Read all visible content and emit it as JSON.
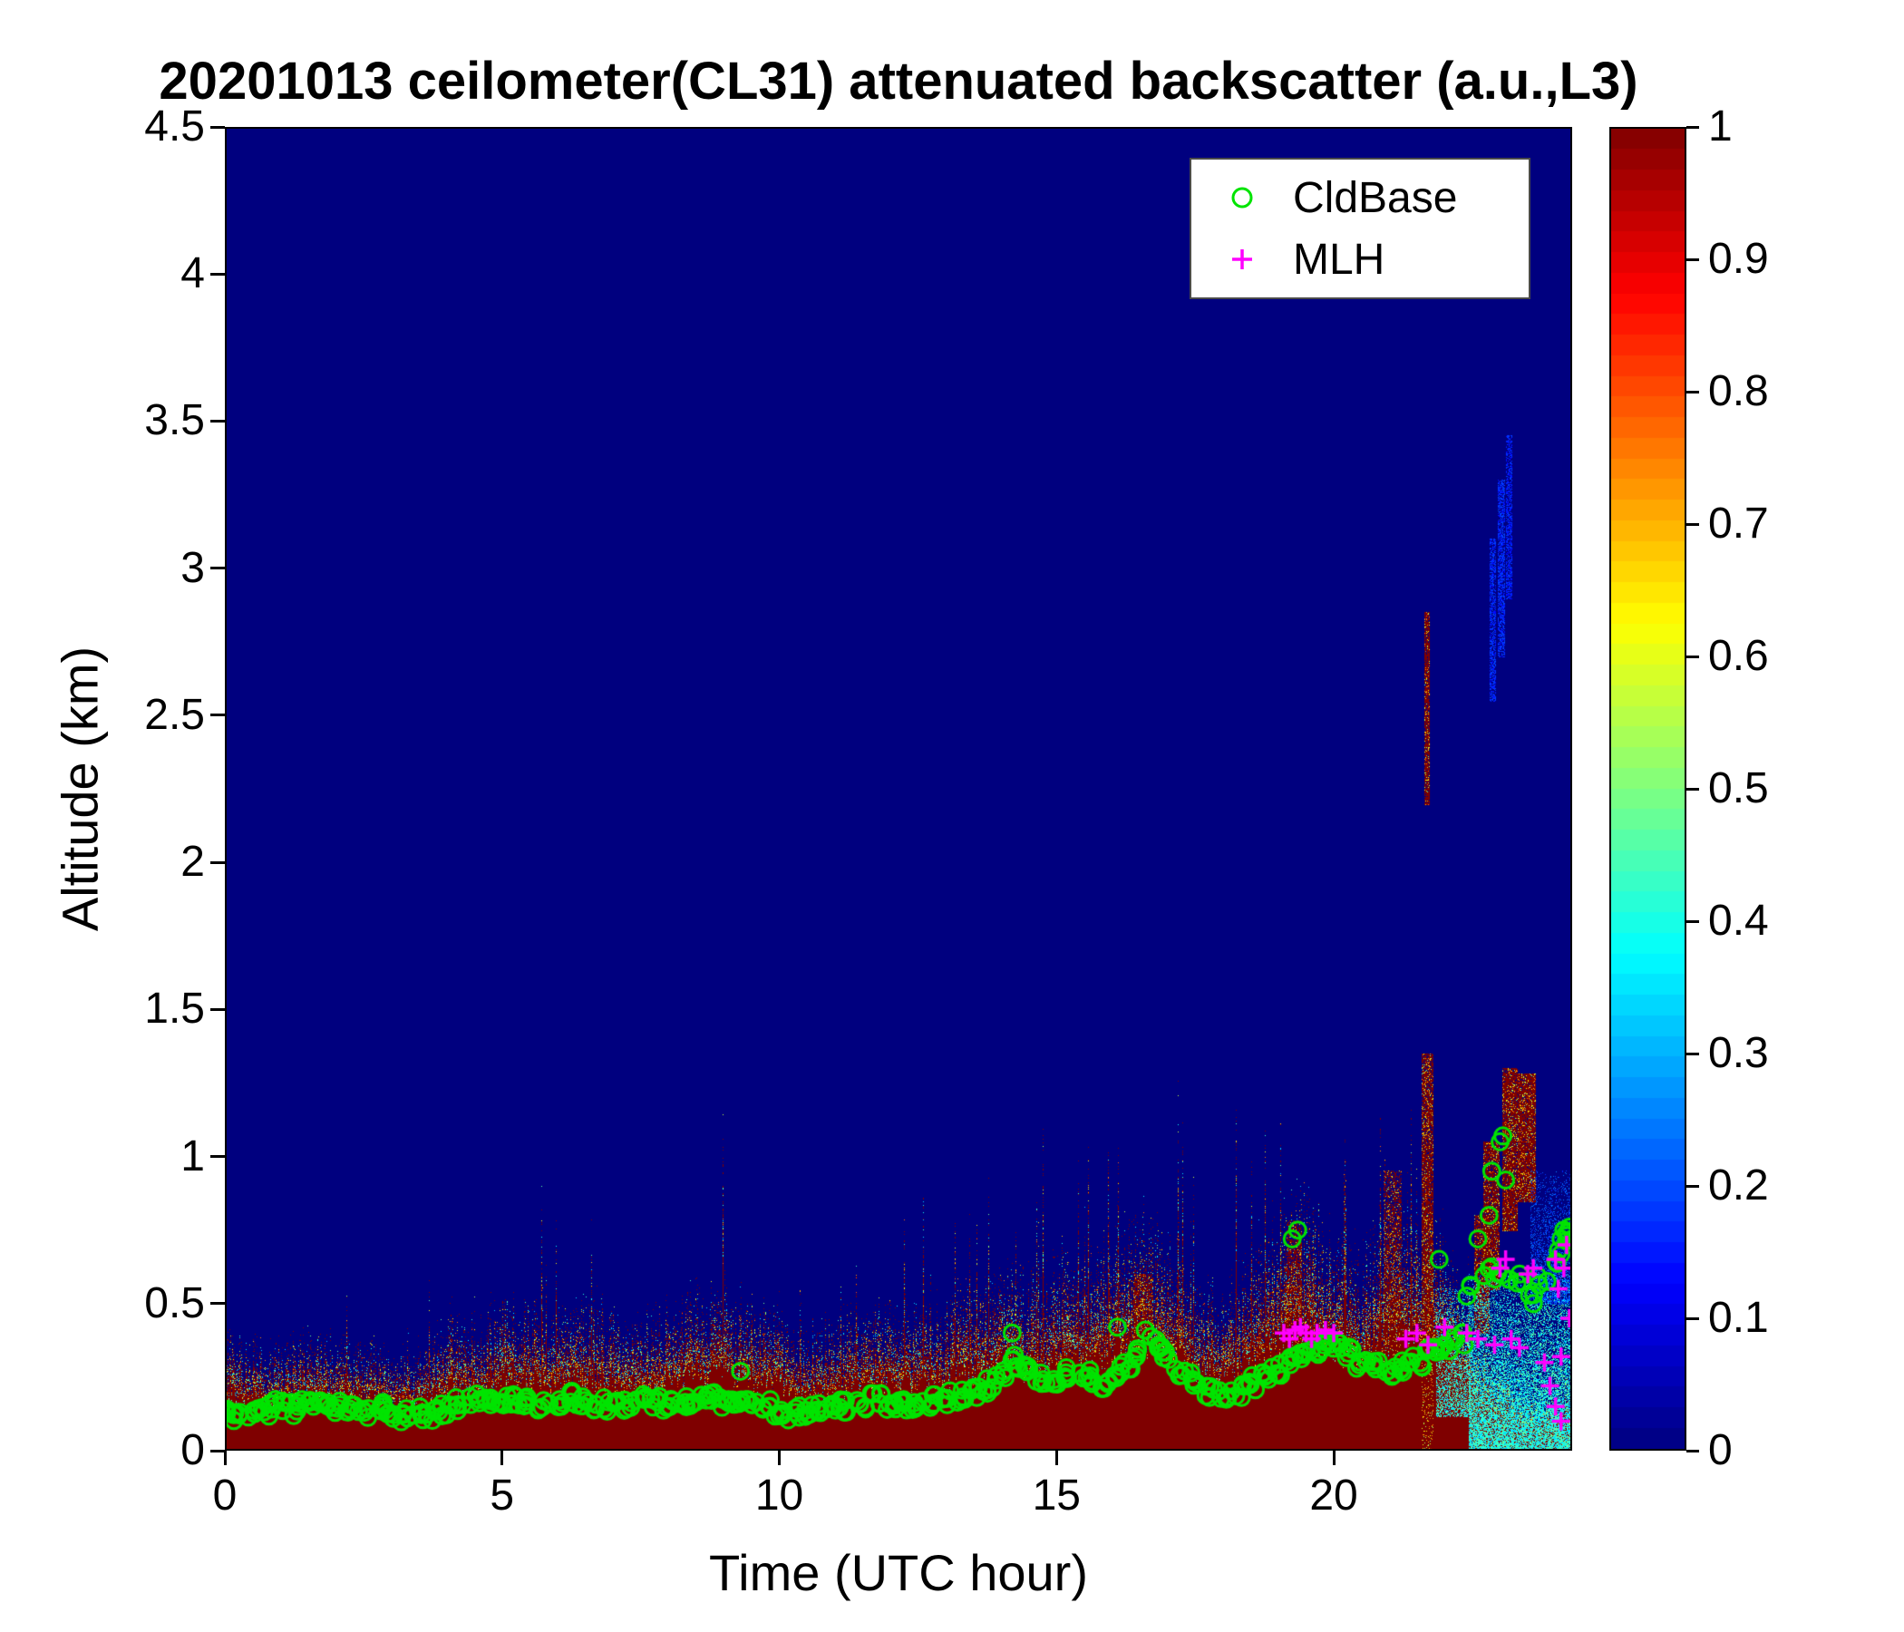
{
  "figure": {
    "background": "#ffffff",
    "text_color": "#000000"
  },
  "chart_data": {
    "type": "heatmap",
    "title": "20201013 ceilometer(CL31) attenuated backscatter (a.u.,L3)",
    "xlabel": "Time (UTC hour)",
    "ylabel": "Altitude (km)",
    "xlim": [
      0,
      24.3
    ],
    "ylim": [
      0,
      4.5
    ],
    "xticks": [
      0,
      5,
      10,
      15,
      20
    ],
    "xtick_labels": [
      "0",
      "5",
      "10",
      "15",
      "20"
    ],
    "yticks": [
      0,
      0.5,
      1,
      1.5,
      2,
      2.5,
      3,
      3.5,
      4,
      4.5
    ],
    "ytick_labels": [
      "0",
      "0.5",
      "1",
      "1.5",
      "2",
      "2.5",
      "3",
      "3.5",
      "4",
      "4.5"
    ],
    "colormap": "jet",
    "grid": false,
    "background_value": 0,
    "colorbar": {
      "min": 0,
      "max": 1,
      "ticks": [
        0,
        0.1,
        0.2,
        0.3,
        0.4,
        0.5,
        0.6,
        0.7,
        0.8,
        0.9,
        1
      ],
      "tick_labels": [
        "0",
        "0.1",
        "0.2",
        "0.3",
        "0.4",
        "0.5",
        "0.6",
        "0.7",
        "0.8",
        "0.9",
        "1"
      ]
    },
    "legend": {
      "position": "top-right",
      "entries": [
        "CldBase",
        "MLH"
      ]
    },
    "surface_layer": {
      "description": "near-surface high-backscatter aerosol layer (value ~1, dark red) with noisy speckled top",
      "value": 1,
      "hours": [
        0,
        0.5,
        1,
        1.5,
        2,
        2.5,
        3,
        3.5,
        4,
        4.5,
        5,
        5.5,
        6,
        6.5,
        7,
        7.5,
        8,
        8.5,
        9,
        9.5,
        10,
        10.5,
        11,
        11.5,
        12,
        12.5,
        13,
        13.5,
        14,
        14.5,
        15,
        15.5,
        16,
        16.5,
        17,
        17.5,
        18,
        18.5,
        19,
        19.5,
        20,
        20.5,
        21,
        21.5,
        22,
        22.3,
        22.6,
        23,
        23.5,
        24,
        24.3
      ],
      "top_km": [
        0.26,
        0.25,
        0.24,
        0.25,
        0.26,
        0.24,
        0.23,
        0.24,
        0.28,
        0.3,
        0.33,
        0.32,
        0.31,
        0.33,
        0.31,
        0.3,
        0.32,
        0.34,
        0.36,
        0.33,
        0.3,
        0.28,
        0.29,
        0.31,
        0.32,
        0.31,
        0.33,
        0.36,
        0.4,
        0.38,
        0.4,
        0.43,
        0.48,
        0.52,
        0.47,
        0.38,
        0.34,
        0.42,
        0.52,
        0.56,
        0.48,
        0.44,
        0.52,
        0.58,
        0.48,
        0.35,
        0.25,
        0.18,
        0.12,
        0.12,
        0.12
      ]
    },
    "features": [
      {
        "name": "elevated-red-streak",
        "x0": 21.64,
        "x1": 21.71,
        "y0": 2.2,
        "y1": 2.85,
        "v": 1,
        "density": 0.85
      },
      {
        "name": "red-column",
        "x0": 21.6,
        "x1": 21.78,
        "y0": 0,
        "y1": 1.35,
        "v": 1,
        "density": 0.8
      },
      {
        "name": "red-plume",
        "x0": 16.4,
        "x1": 16.7,
        "y0": 0.35,
        "y1": 0.6,
        "v": 1,
        "density": 0.6
      },
      {
        "name": "red-plume",
        "x0": 19.15,
        "x1": 19.4,
        "y0": 0.3,
        "y1": 0.78,
        "v": 1,
        "density": 0.5
      },
      {
        "name": "red-plume",
        "x0": 20.9,
        "x1": 21.2,
        "y0": 0.3,
        "y1": 0.95,
        "v": 1,
        "density": 0.5
      },
      {
        "name": "cloud-red",
        "x0": 22.55,
        "x1": 22.78,
        "y0": 0.4,
        "y1": 0.8,
        "v": 1,
        "density": 0.75
      },
      {
        "name": "cloud-red",
        "x0": 22.7,
        "x1": 22.97,
        "y0": 0.55,
        "y1": 1.05,
        "v": 1,
        "density": 0.8
      },
      {
        "name": "cloud-red",
        "x0": 23.05,
        "x1": 23.3,
        "y0": 0.75,
        "y1": 1.3,
        "v": 1,
        "density": 0.85
      },
      {
        "name": "cloud-red",
        "x0": 23.32,
        "x1": 23.62,
        "y0": 0.85,
        "y1": 1.28,
        "v": 1,
        "density": 0.9
      },
      {
        "name": "faint-blue-streak",
        "x0": 22.82,
        "x1": 22.9,
        "y0": 2.55,
        "y1": 3.1,
        "v": 0.16,
        "density": 0.6
      },
      {
        "name": "faint-blue-streak",
        "x0": 22.97,
        "x1": 23.06,
        "y0": 2.7,
        "y1": 3.3,
        "v": 0.16,
        "density": 0.6
      },
      {
        "name": "faint-blue-streak",
        "x0": 23.12,
        "x1": 23.2,
        "y0": 2.9,
        "y1": 3.45,
        "v": 0.15,
        "density": 0.55
      },
      {
        "name": "cyan-boundary-layer",
        "x0": 21.85,
        "x1": 22.45,
        "y0": 0.12,
        "y1": 0.55,
        "v": 0.38,
        "density": 0.55,
        "fade": true
      },
      {
        "name": "cyan-boundary-layer",
        "x0": 22.45,
        "x1": 24.3,
        "y0": 0,
        "y1": 0.6,
        "v": 0.38,
        "density": 0.85,
        "fade": true
      },
      {
        "name": "light-blue-top",
        "x0": 23.55,
        "x1": 24.3,
        "y0": 0.5,
        "y1": 0.95,
        "v": 0.2,
        "density": 0.5,
        "fade": true
      }
    ],
    "series": [
      {
        "name": "CldBase",
        "marker": "circle",
        "color": "#00e400",
        "points": [
          [
            0,
            0.13
          ],
          [
            0.25,
            0.12
          ],
          [
            0.5,
            0.13
          ],
          [
            0.75,
            0.14
          ],
          [
            1,
            0.15
          ],
          [
            1.25,
            0.14
          ],
          [
            1.5,
            0.15
          ],
          [
            1.75,
            0.16
          ],
          [
            2,
            0.15
          ],
          [
            2.25,
            0.14
          ],
          [
            2.5,
            0.13
          ],
          [
            2.75,
            0.14
          ],
          [
            3,
            0.13
          ],
          [
            3.25,
            0.12
          ],
          [
            3.5,
            0.13
          ],
          [
            3.75,
            0.12
          ],
          [
            4,
            0.14
          ],
          [
            4.25,
            0.16
          ],
          [
            4.5,
            0.17
          ],
          [
            4.75,
            0.18
          ],
          [
            5,
            0.17
          ],
          [
            5.25,
            0.18
          ],
          [
            5.5,
            0.17
          ],
          [
            5.75,
            0.16
          ],
          [
            6,
            0.17
          ],
          [
            6.25,
            0.18
          ],
          [
            6.5,
            0.17
          ],
          [
            6.75,
            0.16
          ],
          [
            7,
            0.15
          ],
          [
            7.25,
            0.16
          ],
          [
            7.5,
            0.17
          ],
          [
            7.75,
            0.16
          ],
          [
            8,
            0.15
          ],
          [
            8.25,
            0.16
          ],
          [
            8.5,
            0.17
          ],
          [
            8.75,
            0.18
          ],
          [
            9,
            0.17
          ],
          [
            9.25,
            0.18
          ],
          [
            9.5,
            0.16
          ],
          [
            9.75,
            0.15
          ],
          [
            10,
            0.14
          ],
          [
            10.25,
            0.13
          ],
          [
            10.5,
            0.14
          ],
          [
            10.75,
            0.15
          ],
          [
            11,
            0.16
          ],
          [
            11.25,
            0.15
          ],
          [
            11.5,
            0.16
          ],
          [
            11.75,
            0.17
          ],
          [
            12,
            0.16
          ],
          [
            12.25,
            0.15
          ],
          [
            12.5,
            0.16
          ],
          [
            12.75,
            0.17
          ],
          [
            13,
            0.18
          ],
          [
            13.25,
            0.19
          ],
          [
            13.5,
            0.2
          ],
          [
            13.75,
            0.22
          ],
          [
            14,
            0.25
          ],
          [
            14.25,
            0.3
          ],
          [
            14.5,
            0.28
          ],
          [
            14.75,
            0.25
          ],
          [
            15,
            0.24
          ],
          [
            15.25,
            0.26
          ],
          [
            15.5,
            0.25
          ],
          [
            15.75,
            0.22
          ],
          [
            16,
            0.25
          ],
          [
            16.25,
            0.28
          ],
          [
            16.5,
            0.33
          ],
          [
            16.75,
            0.37
          ],
          [
            17,
            0.33
          ],
          [
            17.25,
            0.28
          ],
          [
            17.5,
            0.24
          ],
          [
            17.75,
            0.2
          ],
          [
            18,
            0.18
          ],
          [
            18.25,
            0.2
          ],
          [
            18.5,
            0.23
          ],
          [
            18.75,
            0.26
          ],
          [
            19,
            0.28
          ],
          [
            19.25,
            0.3
          ],
          [
            19.5,
            0.33
          ],
          [
            19.75,
            0.35
          ],
          [
            20,
            0.36
          ],
          [
            20.25,
            0.34
          ],
          [
            20.5,
            0.3
          ],
          [
            20.75,
            0.28
          ],
          [
            21,
            0.27
          ],
          [
            21.25,
            0.28
          ],
          [
            21.5,
            0.3
          ],
          [
            21.75,
            0.33
          ],
          [
            22,
            0.35
          ],
          [
            22.25,
            0.38
          ],
          [
            22.5,
            0.55
          ],
          [
            22.75,
            0.62
          ],
          [
            23,
            0.6
          ],
          [
            23.25,
            0.58
          ],
          [
            23.5,
            0.55
          ],
          [
            23.75,
            0.58
          ],
          [
            24,
            0.65
          ],
          [
            24.25,
            0.73
          ]
        ],
        "outliers": [
          [
            9.3,
            0.27
          ],
          [
            14.2,
            0.4
          ],
          [
            16.1,
            0.42
          ],
          [
            16.6,
            0.41
          ],
          [
            19.25,
            0.72
          ],
          [
            19.35,
            0.75
          ],
          [
            21.9,
            0.65
          ],
          [
            22.6,
            0.72
          ],
          [
            22.8,
            0.8
          ],
          [
            22.85,
            0.95
          ],
          [
            23,
            1.05
          ],
          [
            23.05,
            1.07
          ],
          [
            23.1,
            0.92
          ],
          [
            23.6,
            0.5
          ],
          [
            24.05,
            0.68
          ],
          [
            24.1,
            0.72
          ],
          [
            24.15,
            0.75
          ],
          [
            24.2,
            0.74
          ],
          [
            24.25,
            0.76
          ],
          [
            24.3,
            0.72
          ]
        ]
      },
      {
        "name": "MLH",
        "marker": "plus",
        "color": "#ff00ff",
        "points": [
          [
            19.1,
            0.4
          ],
          [
            19.2,
            0.38
          ],
          [
            19.3,
            0.41
          ],
          [
            19.4,
            0.42
          ],
          [
            19.5,
            0.4
          ],
          [
            19.6,
            0.38
          ],
          [
            19.7,
            0.4
          ],
          [
            19.85,
            0.41
          ],
          [
            20,
            0.4
          ],
          [
            21.3,
            0.38
          ],
          [
            21.5,
            0.4
          ],
          [
            21.7,
            0.36
          ],
          [
            22,
            0.42
          ],
          [
            22.4,
            0.4
          ],
          [
            22.6,
            0.38
          ],
          [
            22.9,
            0.36
          ],
          [
            23,
            0.62
          ],
          [
            23.1,
            0.65
          ],
          [
            23.2,
            0.38
          ],
          [
            23.35,
            0.35
          ],
          [
            23.5,
            0.6
          ],
          [
            23.6,
            0.62
          ],
          [
            23.8,
            0.3
          ],
          [
            23.9,
            0.22
          ],
          [
            24,
            0.15
          ],
          [
            24,
            0.65
          ],
          [
            24.05,
            0.55
          ],
          [
            24.1,
            0.1
          ],
          [
            24.1,
            0.32
          ],
          [
            24.15,
            0.62
          ],
          [
            24.2,
            0.7
          ],
          [
            24.25,
            0.45
          ]
        ]
      }
    ]
  }
}
